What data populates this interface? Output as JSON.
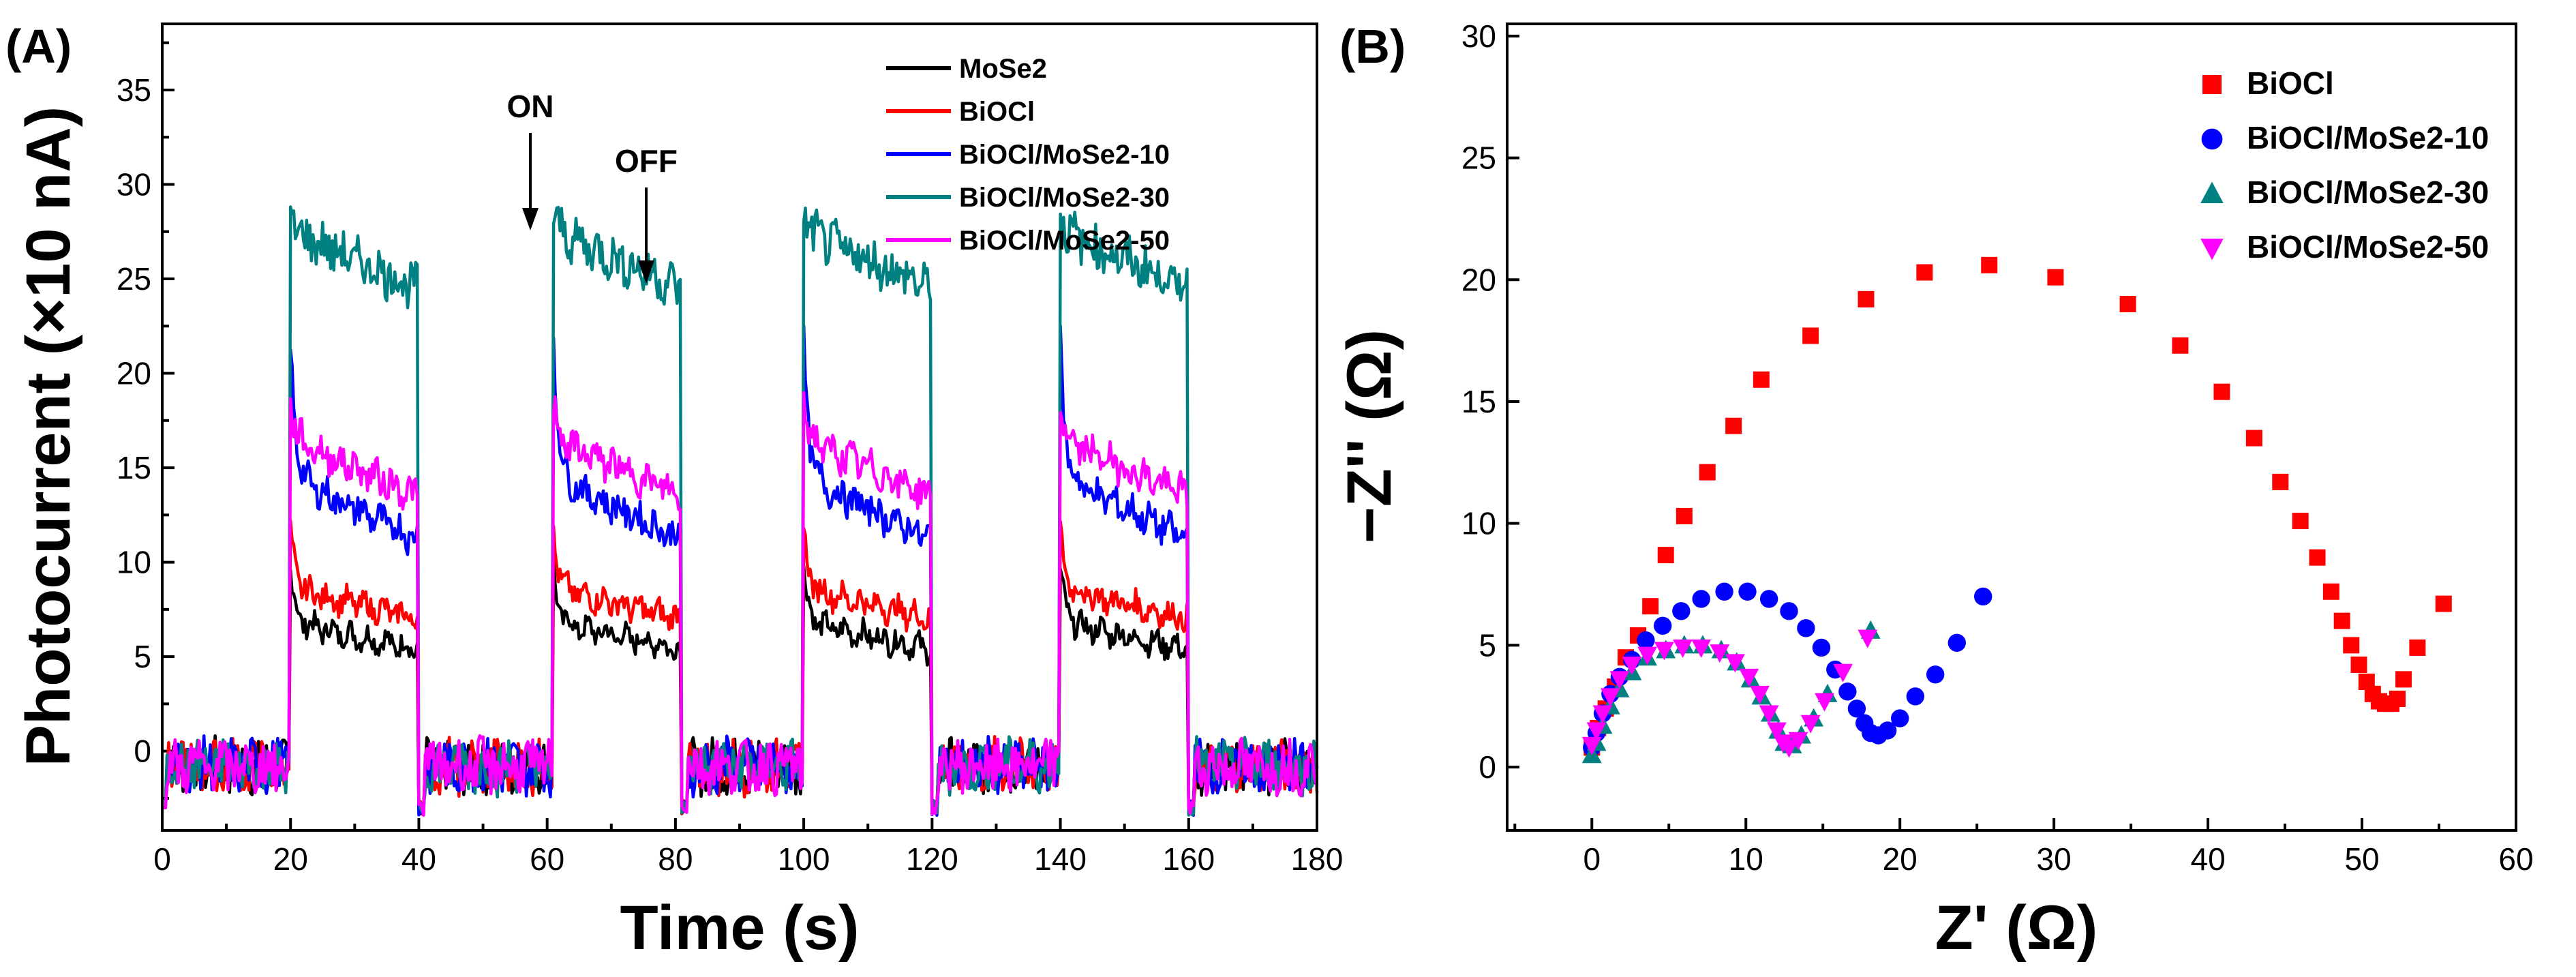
{
  "chart_data": [
    {
      "panel_label": "(A)",
      "type": "line",
      "xlabel": "Time (s)",
      "ylabel": "Photocurrent (×10 nA)",
      "xlim": [
        0,
        180
      ],
      "ylim": [
        -4.2,
        38.5
      ],
      "xticks": [
        "0",
        "20",
        "40",
        "60",
        "80",
        "100",
        "120",
        "140",
        "160",
        "180"
      ],
      "yticks": [
        "0",
        "5",
        "10",
        "15",
        "20",
        "25",
        "30",
        "35"
      ],
      "on_periods": [
        [
          20,
          40
        ],
        [
          61,
          81
        ],
        [
          100,
          120
        ],
        [
          140,
          160
        ]
      ],
      "annotations": [
        {
          "text": "ON",
          "x": 61
        },
        {
          "text": "OFF",
          "x": 80
        }
      ],
      "series": [
        {
          "name": "MoSe2",
          "color": "#000000",
          "peak": 9.5,
          "plateau_start": 6.8,
          "plateau_end": 5.4
        },
        {
          "name": "BiOCl",
          "color": "#ff0000",
          "peak": 11.5,
          "plateau_start": 8.6,
          "plateau_end": 7.0
        },
        {
          "name": "BiOCl/MoSe2-10",
          "color": "#0000ff",
          "peak": 21.5,
          "plateau_start": 14.5,
          "plateau_end": 11.2
        },
        {
          "name": "BiOCl/MoSe2-30",
          "color": "#008080",
          "peak": 28.5,
          "plateau_start": 27.5,
          "plateau_end": 24.5
        },
        {
          "name": "BiOCl/MoSe2-50",
          "color": "#ff00ff",
          "peak": 18.5,
          "plateau_start": 16.5,
          "plateau_end": 13.5
        }
      ]
    },
    {
      "panel_label": "(B)",
      "type": "scatter",
      "xlabel": "Z' (Ω)",
      "ylabel": "−Z'' (Ω)",
      "xlim": [
        -5.5,
        60
      ],
      "ylim": [
        -2.6,
        30.5
      ],
      "xticks": [
        "0",
        "10",
        "20",
        "30",
        "40",
        "50",
        "60"
      ],
      "yticks": [
        "0",
        "5",
        "10",
        "15",
        "20",
        "25",
        "30"
      ],
      "series": [
        {
          "name": "BiOCl",
          "color": "#ff0000",
          "marker": "square",
          "points": [
            [
              0,
              0.8
            ],
            [
              0.4,
              1.6
            ],
            [
              0.9,
              2.4
            ],
            [
              1.5,
              3.3
            ],
            [
              2.2,
              4.5
            ],
            [
              3.0,
              5.4
            ],
            [
              3.8,
              6.6
            ],
            [
              4.8,
              8.7
            ],
            [
              6.0,
              10.3
            ],
            [
              7.5,
              12.1
            ],
            [
              9.2,
              14.0
            ],
            [
              11.0,
              15.9
            ],
            [
              14.2,
              17.7
            ],
            [
              17.8,
              19.2
            ],
            [
              21.6,
              20.3
            ],
            [
              25.8,
              20.6
            ],
            [
              30.1,
              20.1
            ],
            [
              34.8,
              19.0
            ],
            [
              38.2,
              17.3
            ],
            [
              40.9,
              15.4
            ],
            [
              43.0,
              13.5
            ],
            [
              44.7,
              11.7
            ],
            [
              46.0,
              10.1
            ],
            [
              47.1,
              8.6
            ],
            [
              48.0,
              7.2
            ],
            [
              48.7,
              6.0
            ],
            [
              49.3,
              5.0
            ],
            [
              49.8,
              4.2
            ],
            [
              50.3,
              3.5
            ],
            [
              50.7,
              3.0
            ],
            [
              51.1,
              2.7
            ],
            [
              51.5,
              2.6
            ],
            [
              51.9,
              2.6
            ],
            [
              52.3,
              2.8
            ],
            [
              52.7,
              3.6
            ],
            [
              53.6,
              4.9
            ],
            [
              55.3,
              6.7
            ]
          ]
        },
        {
          "name": "BiOCl/MoSe2-10",
          "color": "#0000ff",
          "marker": "circle",
          "points": [
            [
              0,
              0.8
            ],
            [
              0.3,
              1.4
            ],
            [
              0.7,
              2.2
            ],
            [
              1.2,
              3.0
            ],
            [
              1.8,
              3.7
            ],
            [
              2.6,
              4.4
            ],
            [
              3.5,
              5.2
            ],
            [
              4.6,
              5.8
            ],
            [
              5.8,
              6.4
            ],
            [
              7.1,
              6.9
            ],
            [
              8.6,
              7.2
            ],
            [
              10.1,
              7.2
            ],
            [
              11.5,
              6.9
            ],
            [
              12.8,
              6.4
            ],
            [
              13.9,
              5.7
            ],
            [
              14.9,
              4.9
            ],
            [
              15.8,
              4.0
            ],
            [
              16.6,
              3.1
            ],
            [
              17.2,
              2.4
            ],
            [
              17.7,
              1.8
            ],
            [
              18.1,
              1.4
            ],
            [
              18.6,
              1.3
            ],
            [
              19.2,
              1.5
            ],
            [
              20.0,
              2.0
            ],
            [
              21.0,
              2.9
            ],
            [
              22.3,
              3.8
            ],
            [
              23.7,
              5.1
            ],
            [
              25.4,
              7.0
            ]
          ]
        },
        {
          "name": "BiOCl/MoSe2-30",
          "color": "#008080",
          "marker": "triangle-up",
          "points": [
            [
              0,
              0.5
            ],
            [
              0.3,
              1.0
            ],
            [
              0.7,
              1.7
            ],
            [
              1.2,
              2.5
            ],
            [
              1.8,
              3.2
            ],
            [
              2.6,
              3.9
            ],
            [
              3.6,
              4.5
            ],
            [
              4.8,
              4.8
            ],
            [
              6.0,
              5.0
            ],
            [
              7.2,
              5.0
            ],
            [
              8.4,
              4.8
            ],
            [
              9.4,
              4.3
            ],
            [
              10.3,
              3.6
            ],
            [
              11.0,
              2.9
            ],
            [
              11.6,
              2.2
            ],
            [
              12.1,
              1.5
            ],
            [
              12.5,
              1.0
            ],
            [
              13.0,
              0.9
            ],
            [
              13.6,
              1.3
            ],
            [
              14.4,
              2.0
            ],
            [
              15.3,
              3.0
            ],
            [
              18.1,
              5.6
            ]
          ]
        },
        {
          "name": "BiOCl/MoSe2-50",
          "color": "#ff00ff",
          "marker": "triangle-down",
          "points": [
            [
              0,
              0.9
            ],
            [
              0.3,
              1.5
            ],
            [
              0.7,
              2.2
            ],
            [
              1.2,
              2.9
            ],
            [
              1.8,
              3.6
            ],
            [
              2.6,
              4.2
            ],
            [
              3.6,
              4.6
            ],
            [
              4.7,
              4.8
            ],
            [
              5.9,
              4.9
            ],
            [
              7.1,
              4.9
            ],
            [
              8.3,
              4.7
            ],
            [
              9.3,
              4.3
            ],
            [
              10.2,
              3.7
            ],
            [
              10.9,
              3.0
            ],
            [
              11.5,
              2.2
            ],
            [
              12.0,
              1.5
            ],
            [
              12.4,
              1.0
            ],
            [
              12.8,
              0.8
            ],
            [
              13.4,
              1.1
            ],
            [
              14.2,
              1.8
            ],
            [
              15.1,
              2.7
            ],
            [
              16.3,
              3.9
            ],
            [
              17.9,
              5.3
            ]
          ]
        }
      ]
    }
  ]
}
